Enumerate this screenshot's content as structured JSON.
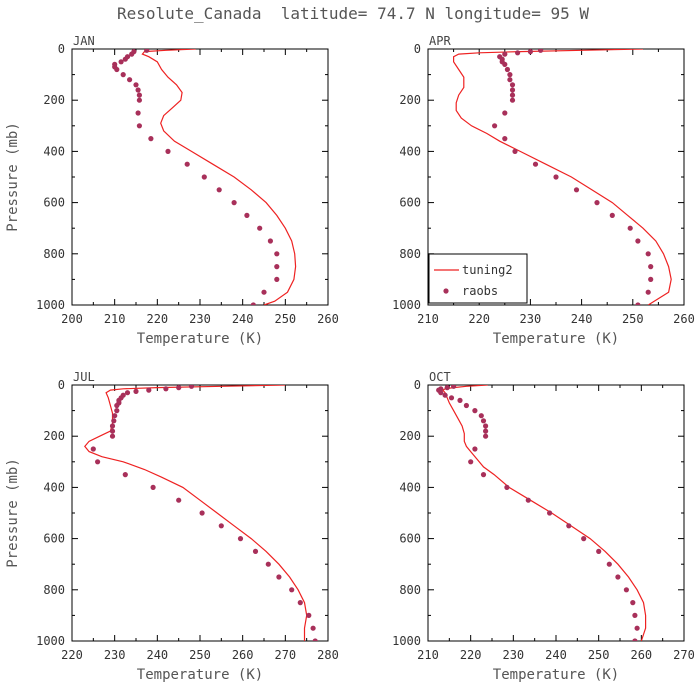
{
  "title": "Resolute_Canada  latitude= 74.7 N longitude= 95 W",
  "legend": {
    "line_label": "tuning2",
    "points_label": "raobs",
    "panel": 1
  },
  "colors": {
    "model": "#ee2222",
    "obs": "#a8305a"
  },
  "chart_data": [
    {
      "type": "line",
      "label": "JAN",
      "xlabel": "Temperature (K)",
      "ylabel": "Pressure (mb)",
      "xlim": [
        200,
        260
      ],
      "ylim": [
        1000,
        0
      ],
      "xticks": [
        200,
        210,
        220,
        230,
        240,
        250,
        260
      ],
      "yticks": [
        0,
        200,
        400,
        600,
        800,
        1000
      ],
      "series": [
        {
          "name": "tuning2",
          "kind": "line",
          "points": [
            [
              229,
              0
            ],
            [
              222,
              5
            ],
            [
              217,
              10
            ],
            [
              216.5,
              20
            ],
            [
              218,
              30
            ],
            [
              220,
              50
            ],
            [
              221,
              80
            ],
            [
              222.5,
              110
            ],
            [
              224.5,
              140
            ],
            [
              225.8,
              170
            ],
            [
              225.5,
              200
            ],
            [
              223.5,
              230
            ],
            [
              221.5,
              260
            ],
            [
              220.8,
              290
            ],
            [
              221.5,
              320
            ],
            [
              224,
              360
            ],
            [
              228,
              400
            ],
            [
              233,
              450
            ],
            [
              238,
              500
            ],
            [
              242,
              550
            ],
            [
              245.5,
              600
            ],
            [
              248,
              650
            ],
            [
              250,
              700
            ],
            [
              251.5,
              750
            ],
            [
              252.2,
              800
            ],
            [
              252.4,
              850
            ],
            [
              252,
              900
            ],
            [
              250.5,
              950
            ],
            [
              247.5,
              985
            ],
            [
              245,
              1000
            ]
          ]
        },
        {
          "name": "raobs",
          "kind": "points",
          "points": [
            [
              217.5,
              5
            ],
            [
              214.5,
              10
            ],
            [
              214,
              20
            ],
            [
              213,
              30
            ],
            [
              212.5,
              40
            ],
            [
              211.5,
              50
            ],
            [
              210,
              60
            ],
            [
              210,
              70
            ],
            [
              210.5,
              80
            ],
            [
              212,
              100
            ],
            [
              213.5,
              120
            ],
            [
              215,
              140
            ],
            [
              215.5,
              160
            ],
            [
              215.8,
              180
            ],
            [
              215.8,
              200
            ],
            [
              215.5,
              250
            ],
            [
              215.8,
              300
            ],
            [
              218.5,
              350
            ],
            [
              222.5,
              400
            ],
            [
              227,
              450
            ],
            [
              231,
              500
            ],
            [
              234.5,
              550
            ],
            [
              238,
              600
            ],
            [
              241,
              650
            ],
            [
              244,
              700
            ],
            [
              246.5,
              750
            ],
            [
              248,
              800
            ],
            [
              248,
              850
            ],
            [
              248,
              900
            ],
            [
              245,
              950
            ],
            [
              242.5,
              1000
            ]
          ]
        }
      ]
    },
    {
      "type": "line",
      "label": "APR",
      "xlabel": "Temperature (K)",
      "ylabel": "",
      "xlim": [
        210,
        260
      ],
      "ylim": [
        1000,
        0
      ],
      "xticks": [
        210,
        220,
        230,
        240,
        250,
        260
      ],
      "yticks": [
        0,
        200,
        400,
        600,
        800,
        1000
      ],
      "series": [
        {
          "name": "tuning2",
          "kind": "line",
          "points": [
            [
              252,
              0
            ],
            [
              240,
              5
            ],
            [
              228,
              10
            ],
            [
              220,
              15
            ],
            [
              216,
              20
            ],
            [
              215,
              30
            ],
            [
              215,
              50
            ],
            [
              216,
              80
            ],
            [
              217,
              110
            ],
            [
              217,
              150
            ],
            [
              216,
              180
            ],
            [
              215.5,
              210
            ],
            [
              215.5,
              240
            ],
            [
              216.5,
              270
            ],
            [
              218.5,
              300
            ],
            [
              221.5,
              330
            ],
            [
              224,
              360
            ],
            [
              228,
              400
            ],
            [
              233,
              450
            ],
            [
              238,
              500
            ],
            [
              242,
              550
            ],
            [
              246,
              600
            ],
            [
              249,
              650
            ],
            [
              252,
              700
            ],
            [
              254.5,
              750
            ],
            [
              256,
              800
            ],
            [
              257,
              850
            ],
            [
              257.5,
              900
            ],
            [
              257,
              950
            ],
            [
              255,
              975
            ],
            [
              253,
              1000
            ]
          ]
        },
        {
          "name": "raobs",
          "kind": "points",
          "points": [
            [
              232,
              5
            ],
            [
              230,
              10
            ],
            [
              227.5,
              15
            ],
            [
              225,
              20
            ],
            [
              224,
              30
            ],
            [
              224.5,
              40
            ],
            [
              224.5,
              50
            ],
            [
              225,
              60
            ],
            [
              225.5,
              80
            ],
            [
              226,
              100
            ],
            [
              226,
              120
            ],
            [
              226.5,
              140
            ],
            [
              226.5,
              160
            ],
            [
              226.5,
              180
            ],
            [
              226.5,
              200
            ],
            [
              225,
              250
            ],
            [
              223,
              300
            ],
            [
              225,
              350
            ],
            [
              227,
              400
            ],
            [
              231,
              450
            ],
            [
              235,
              500
            ],
            [
              239,
              550
            ],
            [
              243,
              600
            ],
            [
              246,
              650
            ],
            [
              249.5,
              700
            ],
            [
              251,
              750
            ],
            [
              253,
              800
            ],
            [
              253.5,
              850
            ],
            [
              253.5,
              900
            ],
            [
              253,
              950
            ],
            [
              251,
              1000
            ]
          ]
        }
      ]
    },
    {
      "type": "line",
      "label": "JUL",
      "xlabel": "Temperature (K)",
      "ylabel": "Pressure (mb)",
      "xlim": [
        220,
        280
      ],
      "ylim": [
        1000,
        0
      ],
      "xticks": [
        220,
        230,
        240,
        250,
        260,
        270,
        280
      ],
      "yticks": [
        0,
        200,
        400,
        600,
        800,
        1000
      ],
      "series": [
        {
          "name": "tuning2",
          "kind": "line",
          "points": [
            [
              270,
              0
            ],
            [
              255,
              5
            ],
            [
              240,
              10
            ],
            [
              232,
              15
            ],
            [
              229,
              20
            ],
            [
              228,
              30
            ],
            [
              228.5,
              50
            ],
            [
              229,
              80
            ],
            [
              229.5,
              110
            ],
            [
              229.5,
              150
            ],
            [
              229,
              180
            ],
            [
              226.5,
              200
            ],
            [
              224,
              220
            ],
            [
              223,
              240
            ],
            [
              224,
              260
            ],
            [
              227,
              280
            ],
            [
              232,
              300
            ],
            [
              237,
              330
            ],
            [
              241,
              360
            ],
            [
              246,
              400
            ],
            [
              250,
              450
            ],
            [
              254,
              500
            ],
            [
              258,
              550
            ],
            [
              262,
              600
            ],
            [
              265.5,
              650
            ],
            [
              268.5,
              700
            ],
            [
              271,
              750
            ],
            [
              273,
              800
            ],
            [
              274.5,
              850
            ],
            [
              275,
              900
            ],
            [
              274.5,
              950
            ],
            [
              274.5,
              1000
            ]
          ]
        },
        {
          "name": "raobs",
          "kind": "points",
          "points": [
            [
              248,
              5
            ],
            [
              245,
              10
            ],
            [
              242,
              15
            ],
            [
              238,
              20
            ],
            [
              235,
              25
            ],
            [
              233,
              30
            ],
            [
              232,
              40
            ],
            [
              231.5,
              50
            ],
            [
              231,
              60
            ],
            [
              231,
              70
            ],
            [
              230.5,
              80
            ],
            [
              230.5,
              100
            ],
            [
              230,
              120
            ],
            [
              229.8,
              140
            ],
            [
              229.5,
              160
            ],
            [
              229.5,
              180
            ],
            [
              229.5,
              200
            ],
            [
              225,
              250
            ],
            [
              226,
              300
            ],
            [
              232.5,
              350
            ],
            [
              239,
              400
            ],
            [
              245,
              450
            ],
            [
              250.5,
              500
            ],
            [
              255,
              550
            ],
            [
              259.5,
              600
            ],
            [
              263,
              650
            ],
            [
              266,
              700
            ],
            [
              268.5,
              750
            ],
            [
              271.5,
              800
            ],
            [
              273.5,
              850
            ],
            [
              275.5,
              900
            ],
            [
              276.5,
              950
            ],
            [
              277,
              1000
            ]
          ]
        }
      ]
    },
    {
      "type": "line",
      "label": "OCT",
      "xlabel": "Temperature (K)",
      "ylabel": "",
      "xlim": [
        210,
        270
      ],
      "ylim": [
        1000,
        0
      ],
      "xticks": [
        210,
        220,
        230,
        240,
        250,
        260,
        270
      ],
      "yticks": [
        0,
        200,
        400,
        600,
        800,
        1000
      ],
      "series": [
        {
          "name": "tuning2",
          "kind": "line",
          "points": [
            [
              224,
              0
            ],
            [
              219,
              5
            ],
            [
              216,
              10
            ],
            [
              214,
              15
            ],
            [
              213.5,
              20
            ],
            [
              214,
              30
            ],
            [
              214.5,
              50
            ],
            [
              215,
              70
            ],
            [
              216,
              100
            ],
            [
              217,
              130
            ],
            [
              218,
              160
            ],
            [
              218.5,
              190
            ],
            [
              218.5,
              220
            ],
            [
              219,
              240
            ],
            [
              220,
              260
            ],
            [
              221.5,
              290
            ],
            [
              223,
              320
            ],
            [
              225.5,
              350
            ],
            [
              229,
              400
            ],
            [
              234,
              450
            ],
            [
              239,
              500
            ],
            [
              243.5,
              550
            ],
            [
              248,
              600
            ],
            [
              251.5,
              650
            ],
            [
              254.5,
              700
            ],
            [
              257,
              750
            ],
            [
              259,
              800
            ],
            [
              260.5,
              850
            ],
            [
              261,
              900
            ],
            [
              261,
              950
            ],
            [
              260,
              1000
            ]
          ]
        },
        {
          "name": "raobs",
          "kind": "points",
          "points": [
            [
              216,
              5
            ],
            [
              214.5,
              10
            ],
            [
              213,
              15
            ],
            [
              212.5,
              20
            ],
            [
              213,
              30
            ],
            [
              214,
              40
            ],
            [
              215.5,
              50
            ],
            [
              217.5,
              60
            ],
            [
              219,
              80
            ],
            [
              221,
              100
            ],
            [
              222.5,
              120
            ],
            [
              223,
              140
            ],
            [
              223.5,
              160
            ],
            [
              223.5,
              180
            ],
            [
              223.5,
              200
            ],
            [
              221,
              250
            ],
            [
              220,
              300
            ],
            [
              223,
              350
            ],
            [
              228.5,
              400
            ],
            [
              233.5,
              450
            ],
            [
              238.5,
              500
            ],
            [
              243,
              550
            ],
            [
              246.5,
              600
            ],
            [
              250,
              650
            ],
            [
              252.5,
              700
            ],
            [
              254.5,
              750
            ],
            [
              256.5,
              800
            ],
            [
              258,
              850
            ],
            [
              258.5,
              900
            ],
            [
              259,
              950
            ],
            [
              258.5,
              1000
            ]
          ]
        }
      ]
    }
  ]
}
